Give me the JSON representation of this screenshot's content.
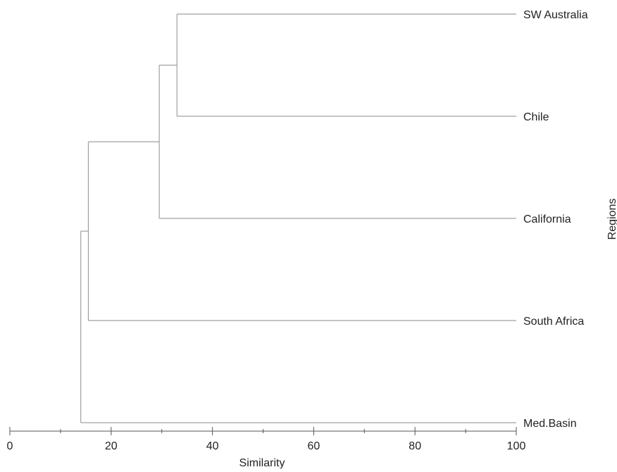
{
  "chart_data": {
    "type": "dendrogram",
    "orientation": "horizontal",
    "title": "",
    "xlabel": "Similarity",
    "ylabel": "Regions",
    "xlim": [
      0,
      100
    ],
    "x_ticks": [
      0,
      20,
      40,
      60,
      80,
      100
    ],
    "leaves": [
      "SW Australia",
      "Chile",
      "California",
      "South Africa",
      "Med.Basin"
    ],
    "merges": [
      {
        "id": "n1",
        "children": [
          "SW Australia",
          "Chile"
        ],
        "similarity": 33
      },
      {
        "id": "n2",
        "children": [
          "n1",
          "California"
        ],
        "similarity": 29.5
      },
      {
        "id": "n3",
        "children": [
          "n2",
          "South Africa"
        ],
        "similarity": 15.5
      },
      {
        "id": "n4",
        "children": [
          "n3",
          "Med.Basin"
        ],
        "similarity": 14
      }
    ],
    "line_color": "#a0a0a0",
    "axis_color": "#555555"
  }
}
